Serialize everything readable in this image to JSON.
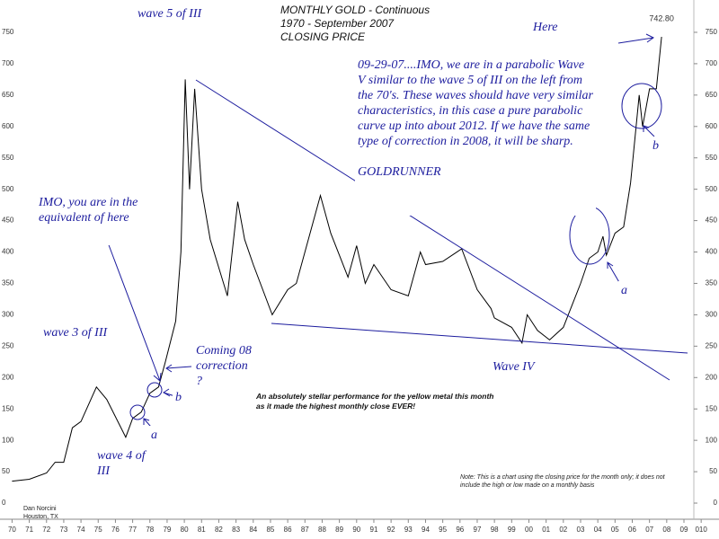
{
  "chart_data": {
    "type": "line",
    "title": "MONTHLY GOLD - Continuous",
    "subtitle": [
      "1970 - September 2007",
      "CLOSING PRICE"
    ],
    "color": "#000000",
    "x": [
      1970,
      1971,
      1972,
      1972.5,
      1973,
      1973.5,
      1974,
      1974.9,
      1975.5,
      1976.6,
      1977,
      1977.5,
      1978,
      1978.5,
      1978.9,
      1979.5,
      1979.8,
      1980.05,
      1980.3,
      1980.6,
      1981,
      1981.5,
      1982.5,
      1983.1,
      1983.5,
      1984,
      1985.1,
      1986,
      1986.5,
      1987.9,
      1988.5,
      1989.5,
      1990,
      1990.5,
      1991,
      1992,
      1993,
      1993.7,
      1994,
      1995,
      1996.1,
      1997,
      1997.8,
      1998,
      1999,
      1999.6,
      1999.9,
      2000.5,
      2001.2,
      2002,
      2002.5,
      2003,
      2003.5,
      2004,
      2004.3,
      2004.5,
      2005,
      2005.5,
      2005.9,
      2006.4,
      2006.6,
      2007,
      2007.4,
      2007.7
    ],
    "values": [
      35,
      38,
      48,
      65,
      65,
      120,
      130,
      185,
      165,
      105,
      135,
      145,
      175,
      185,
      225,
      290,
      400,
      675,
      500,
      660,
      500,
      420,
      330,
      480,
      420,
      380,
      300,
      340,
      350,
      490,
      430,
      360,
      410,
      350,
      380,
      340,
      330,
      400,
      380,
      385,
      405,
      340,
      310,
      295,
      280,
      255,
      300,
      275,
      260,
      280,
      315,
      350,
      390,
      400,
      425,
      395,
      430,
      440,
      510,
      650,
      600,
      660,
      660,
      742.8
    ],
    "value_labels": [
      null,
      null,
      null,
      null,
      null,
      null,
      null,
      null,
      null,
      null,
      null,
      null,
      null,
      null,
      null,
      null,
      null,
      null,
      null,
      null,
      null,
      null,
      null,
      null,
      null,
      null,
      null,
      null,
      null,
      null,
      null,
      null,
      null,
      null,
      null,
      null,
      null,
      null,
      null,
      null,
      null,
      null,
      null,
      null,
      null,
      null,
      null,
      null,
      null,
      null,
      null,
      null,
      null,
      null,
      null,
      null,
      null,
      null,
      null,
      null,
      null,
      null,
      null,
      "742.80"
    ],
    "xlim": [
      1969.3,
      2010.2
    ],
    "xticks": [
      {
        "value": 1970,
        "label": "70"
      },
      {
        "value": 1971,
        "label": "71"
      },
      {
        "value": 1972,
        "label": "72"
      },
      {
        "value": 1973,
        "label": "73"
      },
      {
        "value": 1974,
        "label": "74"
      },
      {
        "value": 1975,
        "label": "75"
      },
      {
        "value": 1976,
        "label": "76"
      },
      {
        "value": 1977,
        "label": "77"
      },
      {
        "value": 1978,
        "label": "78"
      },
      {
        "value": 1979,
        "label": "79"
      },
      {
        "value": 1980,
        "label": "80"
      },
      {
        "value": 1981,
        "label": "81"
      },
      {
        "value": 1982,
        "label": "82"
      },
      {
        "value": 1983,
        "label": "83"
      },
      {
        "value": 1984,
        "label": "84"
      },
      {
        "value": 1985,
        "label": "85"
      },
      {
        "value": 1986,
        "label": "86"
      },
      {
        "value": 1987,
        "label": "87"
      },
      {
        "value": 1988,
        "label": "88"
      },
      {
        "value": 1989,
        "label": "89"
      },
      {
        "value": 1990,
        "label": "90"
      },
      {
        "value": 1991,
        "label": "91"
      },
      {
        "value": 1992,
        "label": "92"
      },
      {
        "value": 1993,
        "label": "93"
      },
      {
        "value": 1994,
        "label": "94"
      },
      {
        "value": 1995,
        "label": "95"
      },
      {
        "value": 1996,
        "label": "96"
      },
      {
        "value": 1997,
        "label": "97"
      },
      {
        "value": 1998,
        "label": "98"
      },
      {
        "value": 1999,
        "label": "99"
      },
      {
        "value": 2000,
        "label": "00"
      },
      {
        "value": 2001,
        "label": "01"
      },
      {
        "value": 2002,
        "label": "02"
      },
      {
        "value": 2003,
        "label": "03"
      },
      {
        "value": 2004,
        "label": "04"
      },
      {
        "value": 2005,
        "label": "05"
      },
      {
        "value": 2006,
        "label": "06"
      },
      {
        "value": 2007,
        "label": "07"
      },
      {
        "value": 2008,
        "label": "08"
      },
      {
        "value": 2009,
        "label": "09"
      },
      {
        "value": 2010,
        "label": "010"
      }
    ],
    "ylim": [
      -20,
      775
    ],
    "yticks": [
      0,
      50,
      100,
      150,
      200,
      250,
      300,
      350,
      400,
      450,
      500,
      550,
      600,
      650,
      700,
      750
    ],
    "grid": false,
    "annotations": [
      "wave 5 of III",
      "Here",
      "IMO, you are in the equivalent of here",
      "wave 3 of III",
      "Coming 08 correction ?",
      "b",
      "a",
      "wave 4 of III",
      "b",
      "a",
      "Wave IV"
    ],
    "commentary": [
      "09-29-07....IMO, we are in a parabolic Wave V similar to the wave 5 of III on the left from the 70's.  These waves should have very similar characteristics, in this case a pure parabolic curve up into about 2012.  If we have the same type of correction in 2008, it will be sharp.",
      "GOLDRUNNER"
    ],
    "performance_note": "An absolutely stellar performance for the yellow metal this month as it made the highest monthly close EVER!",
    "author": [
      "Dan Norcini",
      "Houston, TX"
    ],
    "footnote": "Note: This is a chart using the closing price for the month only; it does not include the high or low made on a monthly basis"
  }
}
